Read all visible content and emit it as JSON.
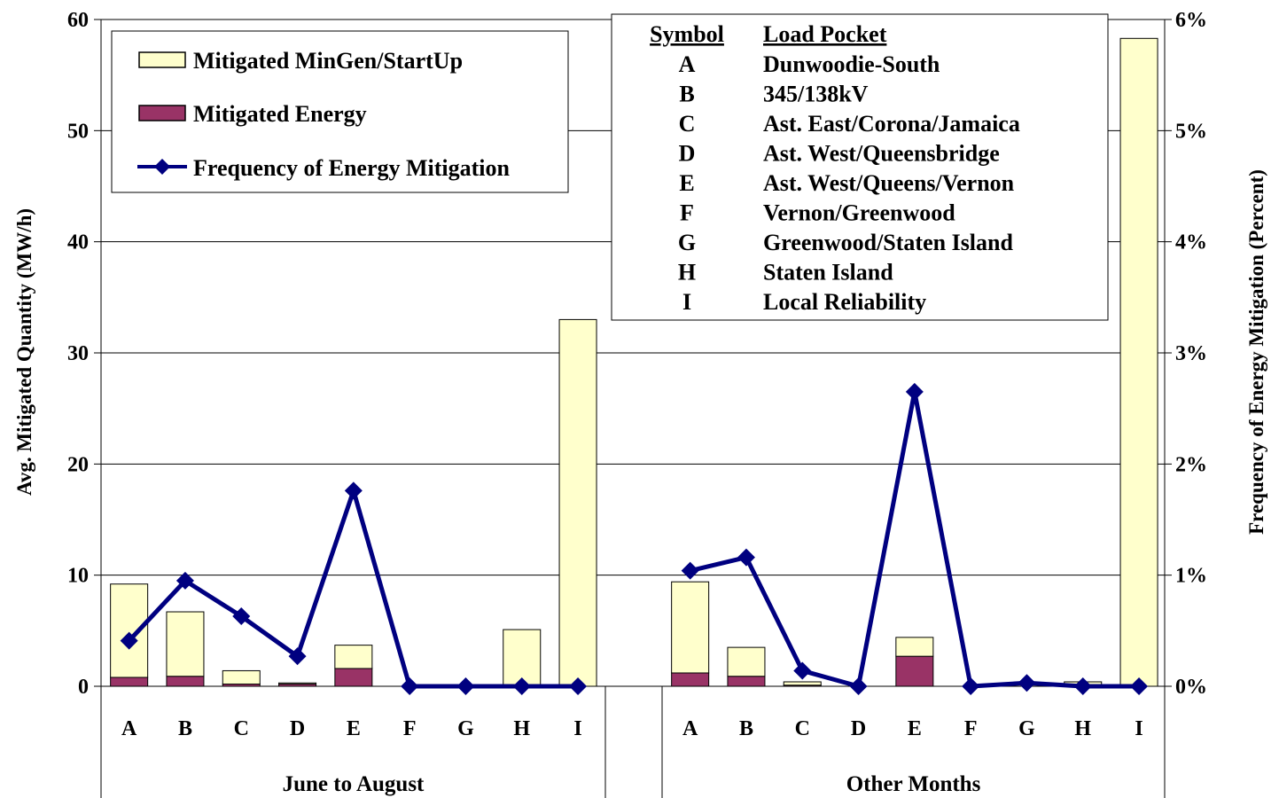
{
  "chart_data": {
    "type": "bar",
    "stacked": true,
    "groups": [
      {
        "label": "June to August",
        "categories": [
          "A",
          "B",
          "C",
          "D",
          "E",
          "F",
          "G",
          "H",
          "I"
        ],
        "mitigated_energy": [
          0.8,
          0.9,
          0.2,
          0.2,
          1.6,
          0,
          0,
          0,
          0
        ],
        "mitigated_mingen_startup": [
          8.4,
          5.8,
          1.2,
          0.1,
          2.1,
          0,
          0,
          5.1,
          33.0
        ],
        "frequency_percent": [
          0.41,
          0.95,
          0.63,
          0.27,
          1.76,
          0,
          0,
          0,
          0
        ]
      },
      {
        "label": "Other Months",
        "categories": [
          "A",
          "B",
          "C",
          "D",
          "E",
          "F",
          "G",
          "H",
          "I"
        ],
        "mitigated_energy": [
          1.2,
          0.9,
          0.1,
          0,
          2.7,
          0,
          0,
          0.1,
          0
        ],
        "mitigated_mingen_startup": [
          8.2,
          2.6,
          0.3,
          0,
          1.7,
          0,
          0,
          0.3,
          58.3
        ],
        "frequency_percent": [
          1.04,
          1.16,
          0.14,
          0,
          2.65,
          0,
          0.03,
          0,
          0
        ]
      }
    ],
    "series": [
      {
        "name": "Mitigated MinGen/StartUp",
        "kind": "bar",
        "color": "#ffffcc"
      },
      {
        "name": "Mitigated Energy",
        "kind": "bar",
        "color": "#993366"
      },
      {
        "name": "Frequency of Energy Mitigation",
        "kind": "line",
        "color": "#000080",
        "axis": "right"
      }
    ],
    "ylabel": "Avg. Mitigated Quantity (MW/h)",
    "ylim": [
      0,
      60
    ],
    "yticks": [
      "0",
      "10",
      "20",
      "30",
      "40",
      "50",
      "60"
    ],
    "y2label": "Frequency of Energy Mitigation (Percent)",
    "y2lim": [
      0,
      6
    ],
    "y2ticks": [
      "0%",
      "1%",
      "2%",
      "3%",
      "4%",
      "5%",
      "6%"
    ],
    "grid": true,
    "legend_position": "top-left",
    "load_pockets": {
      "header_symbol": "Symbol",
      "header_name": "Load Pocket",
      "rows": [
        {
          "symbol": "A",
          "name": "Dunwoodie-South"
        },
        {
          "symbol": "B",
          "name": "345/138kV"
        },
        {
          "symbol": "C",
          "name": "Ast. East/Corona/Jamaica"
        },
        {
          "symbol": "D",
          "name": "Ast. West/Queensbridge"
        },
        {
          "symbol": "E",
          "name": "Ast. West/Queens/Vernon"
        },
        {
          "symbol": "F",
          "name": "Vernon/Greenwood"
        },
        {
          "symbol": "G",
          "name": "Greenwood/Staten Island"
        },
        {
          "symbol": "H",
          "name": "Staten Island"
        },
        {
          "symbol": "I",
          "name": "Local Reliability"
        }
      ]
    }
  }
}
